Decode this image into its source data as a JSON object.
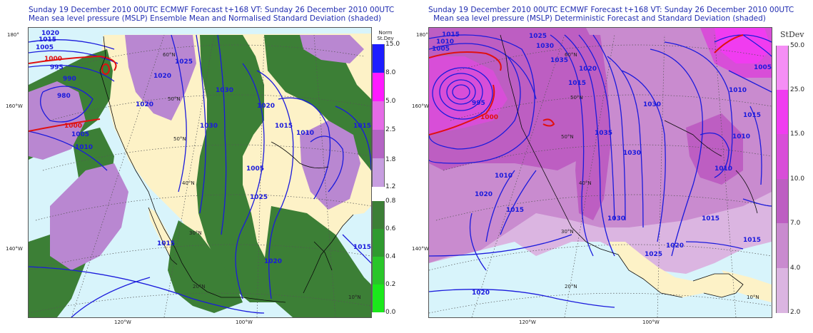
{
  "left_panel": {
    "title_line1": "Sunday 19 December 2010 00UTC ECMWF Forecast t+168  VT: Sunday 26 December 2010 00UTC",
    "title_line2": "Mean sea level pressure (MSLP) Ensemble Mean and Normalised Standard Deviation (shaded)",
    "legend_title": "Norm St.Dev",
    "legend_upper": [
      {
        "label": "15.0",
        "color": "#1d1dff"
      },
      {
        "label": "8.0",
        "color": "#ff1aff"
      },
      {
        "label": "5.0",
        "color": "#e46be6"
      },
      {
        "label": "2.5",
        "color": "#b464c4"
      },
      {
        "label": "1.8",
        "color": "#c79ee0"
      },
      {
        "label": "1.2",
        "color": ""
      }
    ],
    "legend_lower": [
      {
        "label": "0.8",
        "color": "#3c7f36"
      },
      {
        "label": "0.6",
        "color": "#2f9a2f"
      },
      {
        "label": "0.4",
        "color": "#29c629"
      },
      {
        "label": "0.2",
        "color": "#1be81b"
      },
      {
        "label": "0.0",
        "color": ""
      }
    ],
    "isobar_labels": [
      "1020",
      "1015",
      "1005",
      "1000",
      "995",
      "990",
      "980",
      "1000",
      "1005",
      "1010",
      "1020",
      "1025",
      "1030",
      "1020",
      "1015",
      "1010",
      "1015",
      "1005",
      "1025",
      "1020",
      "1015",
      "1015",
      "1030",
      "1020"
    ],
    "edge_labels": {
      "lat180": "180°",
      "lon160": "160°W",
      "lon140": "140°W",
      "lon120": "120°W",
      "lon100": "100°W",
      "lat60": "60°N",
      "lat50": "50°N",
      "lat40": "40°N",
      "lat30": "30°N",
      "lat20": "20°N",
      "lat10": "10°N"
    }
  },
  "right_panel": {
    "title_line1": "Sunday 19 December 2010 00UTC ECMWF Forecast t+168  VT: Sunday 26 December 2010 00UTC",
    "title_line2": "Mean sea level pressure (MSLP) Deterministic Forecast and Standard Deviation (shaded)",
    "legend_title": "StDev",
    "legend": [
      {
        "label": "50.0",
        "color": "#f58ef5"
      },
      {
        "label": "25.0",
        "color": "#f03cf0"
      },
      {
        "label": "15.0",
        "color": "#d84ed8"
      },
      {
        "label": "10.0",
        "color": "#bd5ec2"
      },
      {
        "label": "7.0",
        "color": "#c98bcf"
      },
      {
        "label": "4.0",
        "color": "#dbb5e1"
      },
      {
        "label": "2.0",
        "color": ""
      }
    ],
    "isobar_labels": [
      "1015",
      "1010",
      "1005",
      "1025",
      "1030",
      "1035",
      "1015",
      "1020",
      "1030",
      "1010",
      "995",
      "1000",
      "1010",
      "1020",
      "1015",
      "1035",
      "1030",
      "1025",
      "1020",
      "1015",
      "1010",
      "1015",
      "1010",
      "1005",
      "1030",
      "1020",
      "1015"
    ],
    "edge_labels": {
      "lat180": "180°",
      "lon160": "160°W",
      "lon140": "140°W",
      "lon120": "120°W",
      "lon100": "100°W",
      "lat60": "60°N",
      "lat50": "50°N",
      "lat40": "40°N",
      "lat30": "30°N",
      "lat20": "20°N",
      "lat10": "10°N"
    }
  },
  "colors": {
    "title": "#1f2bb0",
    "ocean": "#d8f4fb",
    "land": "#fdf2c7",
    "isobar": "#1a1adc",
    "isobar_1000": "#e01010",
    "coast": "#0a0a0a",
    "grid": "#555555"
  }
}
